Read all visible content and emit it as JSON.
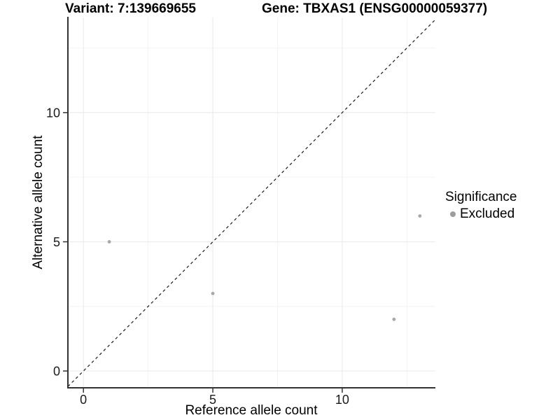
{
  "header": {
    "variant_title": "Variant: 7:139669655",
    "gene_title": "Gene: TBXAS1 (ENSG00000059377)"
  },
  "legend": {
    "title": "Significance",
    "items": [
      {
        "label": "Excluded",
        "color": "#a0a0a0",
        "marker": "circle-icon"
      }
    ]
  },
  "colors": {
    "background": "#ffffff",
    "point": "#a8a8a8",
    "legend_point": "#9e9e9e",
    "axis_line": "#333333",
    "tick_label": "#1a1a1a",
    "grid_major": "#e8e8e8",
    "grid_minor": "#f4f4f4",
    "identity_line": "#1a1a1a"
  },
  "chart_data": {
    "type": "scatter",
    "title": "Variant: 7:139669655  |  Gene: TBXAS1 (ENSG00000059377)",
    "xlabel": "Reference allele count",
    "ylabel": "Alternative allele count",
    "xlim": [
      -0.6,
      13.6
    ],
    "ylim": [
      -0.65,
      13.68
    ],
    "x_major_ticks": [
      0,
      5,
      10
    ],
    "y_major_ticks": [
      0,
      5,
      10
    ],
    "x_tick_labels": [
      "0",
      "5",
      "10"
    ],
    "y_tick_labels": [
      "0",
      "5",
      "10"
    ],
    "x_minor_ticks": [
      2.5,
      7.5,
      12.5
    ],
    "y_minor_ticks": [
      2.5,
      7.5,
      12.5
    ],
    "grid": "major+minor",
    "legend_position": "right",
    "identity_line": {
      "slope": 1,
      "intercept": 0,
      "style": "dashed"
    },
    "series": [
      {
        "name": "Excluded",
        "points": [
          [
            1,
            5
          ],
          [
            5,
            3
          ],
          [
            12,
            2
          ],
          [
            13,
            6
          ]
        ]
      }
    ]
  }
}
